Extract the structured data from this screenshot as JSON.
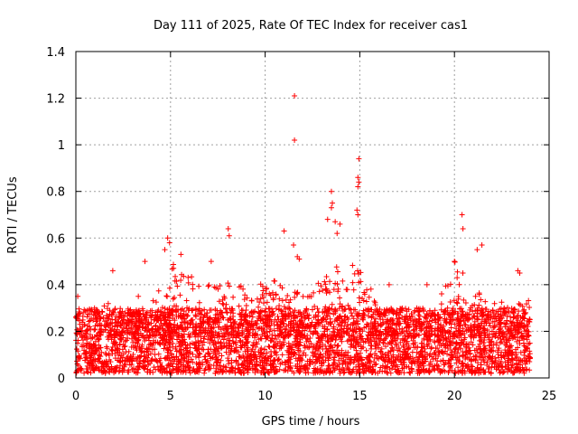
{
  "chart_data": {
    "type": "scatter",
    "title": "Day 111 of 2025, Rate Of TEC Index for receiver cas1",
    "xlabel": "GPS time / hours",
    "ylabel": "ROTI / TECUs",
    "xlim": [
      0,
      25
    ],
    "ylim": [
      0,
      1.4
    ],
    "x_ticks": [
      "0",
      "5",
      "10",
      "15",
      "20",
      "25"
    ],
    "y_ticks": [
      "0",
      "0.2",
      "0.4",
      "0.6",
      "0.8",
      "1",
      "1.2",
      "1.4"
    ],
    "x_tick_values": [
      0,
      5,
      10,
      15,
      20,
      25
    ],
    "y_tick_values": [
      0,
      0.2,
      0.4,
      0.6,
      0.8,
      1.0,
      1.2,
      1.4
    ],
    "grid": true,
    "marker": "+",
    "color": "#ff0000",
    "outliers": [
      {
        "x": 11.55,
        "y": 1.21
      },
      {
        "x": 11.55,
        "y": 1.02
      },
      {
        "x": 14.95,
        "y": 0.94
      },
      {
        "x": 14.9,
        "y": 0.86
      },
      {
        "x": 14.95,
        "y": 0.84
      },
      {
        "x": 14.9,
        "y": 0.82
      },
      {
        "x": 13.5,
        "y": 0.8
      },
      {
        "x": 13.55,
        "y": 0.75
      },
      {
        "x": 13.5,
        "y": 0.73
      },
      {
        "x": 14.85,
        "y": 0.72
      },
      {
        "x": 14.9,
        "y": 0.7
      },
      {
        "x": 20.4,
        "y": 0.7
      },
      {
        "x": 13.3,
        "y": 0.68
      },
      {
        "x": 13.7,
        "y": 0.67
      },
      {
        "x": 13.95,
        "y": 0.66
      },
      {
        "x": 8.05,
        "y": 0.64
      },
      {
        "x": 20.45,
        "y": 0.64
      },
      {
        "x": 11.0,
        "y": 0.63
      },
      {
        "x": 8.1,
        "y": 0.61
      },
      {
        "x": 13.8,
        "y": 0.62
      },
      {
        "x": 4.85,
        "y": 0.6
      },
      {
        "x": 4.95,
        "y": 0.58
      },
      {
        "x": 11.5,
        "y": 0.57
      },
      {
        "x": 21.45,
        "y": 0.57
      },
      {
        "x": 4.7,
        "y": 0.55
      },
      {
        "x": 21.2,
        "y": 0.55
      },
      {
        "x": 5.55,
        "y": 0.53
      },
      {
        "x": 11.7,
        "y": 0.52
      },
      {
        "x": 11.8,
        "y": 0.51
      },
      {
        "x": 3.65,
        "y": 0.5
      },
      {
        "x": 7.15,
        "y": 0.5
      },
      {
        "x": 20.0,
        "y": 0.5
      },
      {
        "x": 23.35,
        "y": 0.46
      },
      {
        "x": 23.45,
        "y": 0.45
      },
      {
        "x": 1.95,
        "y": 0.46
      },
      {
        "x": 18.55,
        "y": 0.4
      },
      {
        "x": 16.55,
        "y": 0.4
      },
      {
        "x": 0.1,
        "y": 0.35
      },
      {
        "x": 3.3,
        "y": 0.35
      }
    ],
    "dense_band": {
      "description": "dense cloud of ROTI samples every few minutes across 0-24 h",
      "x_range": [
        0,
        24
      ],
      "typical_range": [
        0.02,
        0.3
      ],
      "peak_envelope_hours": [
        0,
        1,
        2,
        3,
        4,
        5,
        6,
        7,
        8,
        9,
        10,
        11,
        12,
        13,
        14,
        15,
        16,
        17,
        18,
        19,
        20,
        21,
        22,
        23,
        24
      ],
      "peak_envelope_values": [
        0.3,
        0.3,
        0.33,
        0.25,
        0.33,
        0.5,
        0.45,
        0.4,
        0.42,
        0.4,
        0.42,
        0.42,
        0.38,
        0.45,
        0.5,
        0.5,
        0.3,
        0.25,
        0.22,
        0.3,
        0.5,
        0.4,
        0.33,
        0.33,
        0.35
      ]
    }
  }
}
